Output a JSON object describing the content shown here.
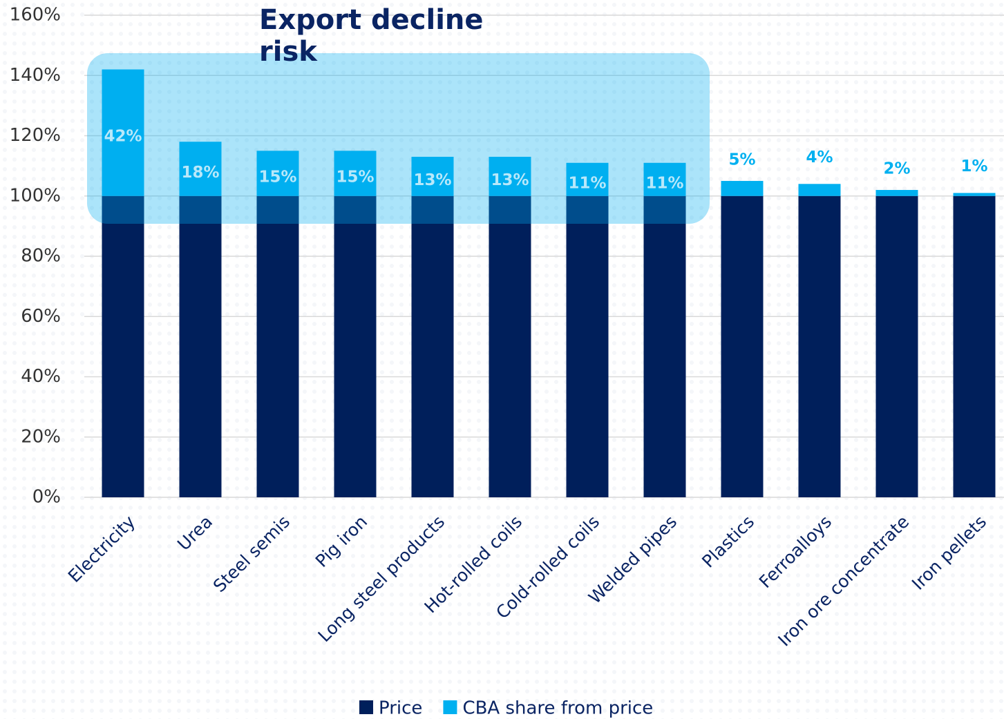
{
  "chart_data": {
    "type": "stacked_bar",
    "annotation": "Export decline risk",
    "categories": [
      "Electricity",
      "Urea",
      "Steel semis",
      "Pig iron",
      "Long steel products",
      "Hot-rolled coils",
      "Cold-rolled coils",
      "Welded pipes",
      "Plastics",
      "Ferroalloys",
      "Iron ore concentrate",
      "Iron pellets"
    ],
    "series": [
      {
        "name": "Price",
        "color": "#001f5b",
        "values": [
          100,
          100,
          100,
          100,
          100,
          100,
          100,
          100,
          100,
          100,
          100,
          100
        ]
      },
      {
        "name": "CBA share from price",
        "color": "#00b0f0",
        "values": [
          42,
          18,
          15,
          15,
          13,
          13,
          11,
          11,
          5,
          4,
          2,
          1
        ],
        "value_labels": [
          "42%",
          "18%",
          "15%",
          "15%",
          "13%",
          "13%",
          "11%",
          "11%",
          "5%",
          "4%",
          "2%",
          "1%"
        ]
      }
    ],
    "ylim": [
      0,
      160
    ],
    "yticks": [
      {
        "value": 0,
        "label": "0%"
      },
      {
        "value": 20,
        "label": "20%"
      },
      {
        "value": 40,
        "label": "40%"
      },
      {
        "value": 60,
        "label": "60%"
      },
      {
        "value": 80,
        "label": "80%"
      },
      {
        "value": 100,
        "label": "100%"
      },
      {
        "value": 120,
        "label": "120%"
      },
      {
        "value": 140,
        "label": "140%"
      },
      {
        "value": 160,
        "label": "160%"
      }
    ],
    "grid": true,
    "legend": "bottom"
  }
}
